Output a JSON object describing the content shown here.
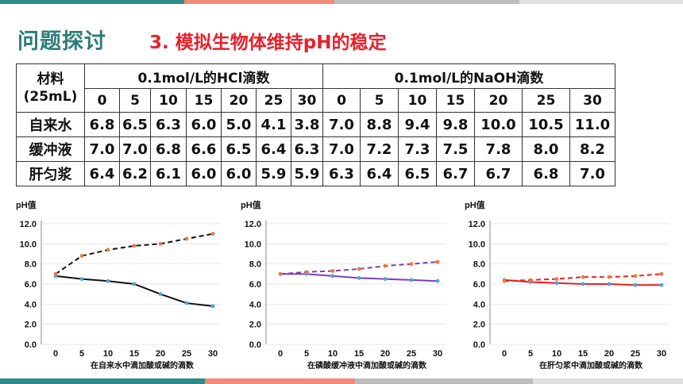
{
  "colors": {
    "bar": [
      "#2e8b88",
      "#f28b7a",
      "#bdbdbd",
      "#e0e0e0",
      "#2e8b88",
      "#f28b7a",
      "#bdbdbd",
      "#e0e0e0"
    ],
    "heading": "#2e7d7a",
    "subheading": "#e8202a"
  },
  "header": {
    "title": "问题探讨",
    "subtitle": "3. 模拟生物体维持pH的稳定"
  },
  "table": {
    "corner_line1": "材料",
    "corner_line2": "(25mL)",
    "group_hcl": "0.1mol/L的HCl滴数",
    "group_naoh": "0.1mol/L的NaOH滴数",
    "drops": [
      "0",
      "5",
      "10",
      "15",
      "20",
      "25",
      "30"
    ],
    "rows": [
      {
        "name": "自来水",
        "hcl": [
          "6.8",
          "6.5",
          "6.3",
          "6.0",
          "5.0",
          "4.1",
          "3.8"
        ],
        "naoh": [
          "7.0",
          "8.8",
          "9.4",
          "9.8",
          "10.0",
          "10.5",
          "11.0"
        ]
      },
      {
        "name": "缓冲液",
        "hcl": [
          "7.0",
          "7.0",
          "6.8",
          "6.6",
          "6.5",
          "6.4",
          "6.3"
        ],
        "naoh": [
          "7.0",
          "7.2",
          "7.3",
          "7.5",
          "7.8",
          "8.0",
          "8.2"
        ]
      },
      {
        "name": "肝匀浆",
        "hcl": [
          "6.4",
          "6.2",
          "6.1",
          "6.0",
          "6.0",
          "5.9",
          "5.9"
        ],
        "naoh": [
          "6.3",
          "6.4",
          "6.5",
          "6.7",
          "6.7",
          "6.8",
          "7.0"
        ]
      }
    ]
  },
  "chart_data": [
    {
      "type": "line",
      "ylabel": "pH值",
      "xlabel": "在自来水中滴加酸或碱的滴数",
      "x": [
        0,
        5,
        10,
        15,
        20,
        25,
        30
      ],
      "ylim": [
        0,
        12
      ],
      "yticks": [
        "0.0",
        "2.0",
        "4.0",
        "6.0",
        "8.0",
        "10.0",
        "12.0"
      ],
      "series": [
        {
          "values": [
            6.8,
            6.5,
            6.3,
            6.0,
            5.0,
            4.1,
            3.8
          ],
          "color": "#111111",
          "dashed": false
        },
        {
          "values": [
            7.0,
            8.8,
            9.4,
            9.8,
            10.0,
            10.5,
            11.0
          ],
          "color": "#111111",
          "dashed": true
        }
      ]
    },
    {
      "type": "line",
      "ylabel": "pH值",
      "xlabel": "在磷酸缓冲液中滴加酸或碱的滴数",
      "x": [
        0,
        5,
        10,
        15,
        20,
        25,
        30
      ],
      "ylim": [
        0,
        12
      ],
      "yticks": [
        "0.0",
        "2.0",
        "4.0",
        "6.0",
        "8.0",
        "10.0",
        "12.0"
      ],
      "series": [
        {
          "values": [
            7.0,
            7.0,
            6.8,
            6.6,
            6.5,
            6.4,
            6.3
          ],
          "color": "#7b3fb5",
          "dashed": false
        },
        {
          "values": [
            7.0,
            7.2,
            7.3,
            7.5,
            7.8,
            8.0,
            8.2
          ],
          "color": "#7b3fb5",
          "dashed": true
        }
      ]
    },
    {
      "type": "line",
      "ylabel": "pH值",
      "xlabel": "在肝匀浆中滴加酸或碱的滴数",
      "x": [
        0,
        5,
        10,
        15,
        20,
        25,
        30
      ],
      "ylim": [
        0,
        12
      ],
      "yticks": [
        "0.0",
        "2.0",
        "4.0",
        "6.0",
        "8.0",
        "10.0",
        "12.0"
      ],
      "series": [
        {
          "values": [
            6.4,
            6.2,
            6.1,
            6.0,
            6.0,
            5.9,
            5.9
          ],
          "color": "#e82020",
          "dashed": false
        },
        {
          "values": [
            6.3,
            6.4,
            6.5,
            6.7,
            6.7,
            6.8,
            7.0
          ],
          "color": "#e82020",
          "dashed": true
        }
      ]
    }
  ]
}
